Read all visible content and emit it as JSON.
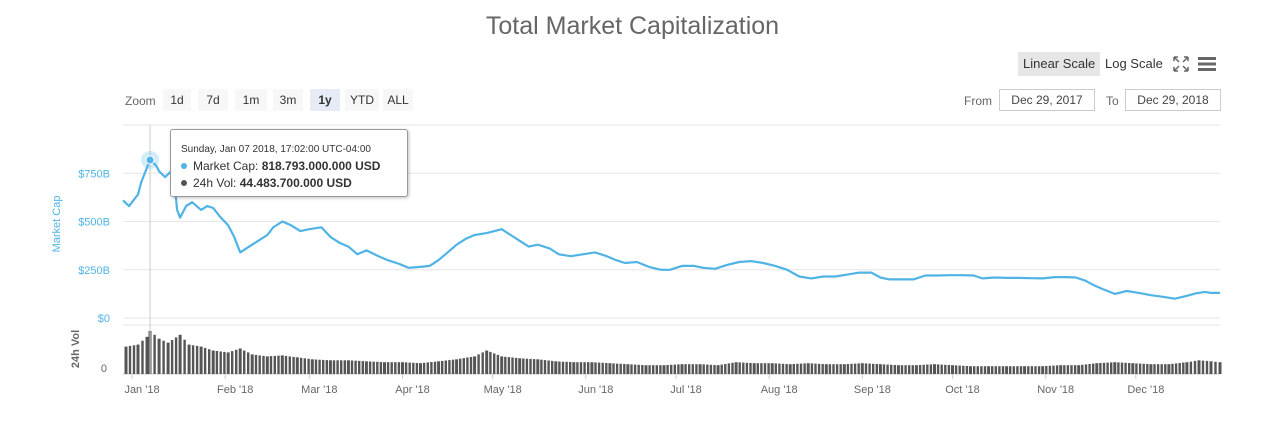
{
  "chart_data": {
    "type": "line",
    "title": "Total Market Capitalization",
    "ylabel": "Market Cap",
    "volume_label": "24h Vol",
    "y_ticks": [
      "$0",
      "$250B",
      "$500B",
      "$750B"
    ],
    "y_tick_values": [
      0,
      250,
      500,
      750
    ],
    "volume_tick": "0",
    "x_ticks": [
      "Jan '18",
      "Feb '18",
      "Mar '18",
      "Apr '18",
      "May '18",
      "Jun '18",
      "Jul '18",
      "Aug '18",
      "Sep '18",
      "Oct '18",
      "Nov '18",
      "Dec '18"
    ],
    "x_tick_dates": [
      "2018-01-01",
      "2018-02-01",
      "2018-03-01",
      "2018-04-01",
      "2018-05-01",
      "2018-06-01",
      "2018-07-01",
      "2018-08-01",
      "2018-09-01",
      "2018-10-01",
      "2018-11-01",
      "2018-12-01"
    ],
    "ylim": [
      0,
      1000
    ],
    "xlim": [
      "2017-12-29",
      "2018-12-29"
    ],
    "grid": true,
    "colors": {
      "line": "#4fb3e6",
      "volume": "#555555",
      "grid": "#e6e6e6"
    },
    "series": [
      {
        "name": "Market Cap",
        "unit": "billion USD",
        "points": [
          [
            "2017-12-29",
            610
          ],
          [
            "2017-12-31",
            580
          ],
          [
            "2018-01-02",
            620
          ],
          [
            "2018-01-03",
            640
          ],
          [
            "2018-01-04",
            700
          ],
          [
            "2018-01-06",
            780
          ],
          [
            "2018-01-07",
            819
          ],
          [
            "2018-01-09",
            790
          ],
          [
            "2018-01-10",
            760
          ],
          [
            "2018-01-12",
            730
          ],
          [
            "2018-01-14",
            760
          ],
          [
            "2018-01-15",
            720
          ],
          [
            "2018-01-16",
            560
          ],
          [
            "2018-01-17",
            520
          ],
          [
            "2018-01-19",
            580
          ],
          [
            "2018-01-21",
            600
          ],
          [
            "2018-01-24",
            560
          ],
          [
            "2018-01-26",
            580
          ],
          [
            "2018-01-28",
            570
          ],
          [
            "2018-01-30",
            530
          ],
          [
            "2018-02-02",
            480
          ],
          [
            "2018-02-04",
            420
          ],
          [
            "2018-02-06",
            340
          ],
          [
            "2018-02-09",
            370
          ],
          [
            "2018-02-12",
            400
          ],
          [
            "2018-02-15",
            430
          ],
          [
            "2018-02-17",
            470
          ],
          [
            "2018-02-20",
            500
          ],
          [
            "2018-02-23",
            480
          ],
          [
            "2018-02-26",
            450
          ],
          [
            "2018-03-01",
            460
          ],
          [
            "2018-03-05",
            470
          ],
          [
            "2018-03-08",
            420
          ],
          [
            "2018-03-11",
            390
          ],
          [
            "2018-03-14",
            370
          ],
          [
            "2018-03-17",
            330
          ],
          [
            "2018-03-20",
            350
          ],
          [
            "2018-03-24",
            320
          ],
          [
            "2018-03-27",
            300
          ],
          [
            "2018-03-31",
            280
          ],
          [
            "2018-04-03",
            260
          ],
          [
            "2018-04-07",
            265
          ],
          [
            "2018-04-10",
            270
          ],
          [
            "2018-04-13",
            300
          ],
          [
            "2018-04-16",
            340
          ],
          [
            "2018-04-19",
            380
          ],
          [
            "2018-04-22",
            410
          ],
          [
            "2018-04-25",
            430
          ],
          [
            "2018-04-29",
            440
          ],
          [
            "2018-05-04",
            460
          ],
          [
            "2018-05-07",
            430
          ],
          [
            "2018-05-10",
            400
          ],
          [
            "2018-05-13",
            370
          ],
          [
            "2018-05-16",
            380
          ],
          [
            "2018-05-20",
            360
          ],
          [
            "2018-05-23",
            330
          ],
          [
            "2018-05-27",
            320
          ],
          [
            "2018-05-31",
            330
          ],
          [
            "2018-06-04",
            340
          ],
          [
            "2018-06-08",
            320
          ],
          [
            "2018-06-11",
            300
          ],
          [
            "2018-06-14",
            285
          ],
          [
            "2018-06-18",
            290
          ],
          [
            "2018-06-22",
            265
          ],
          [
            "2018-06-26",
            250
          ],
          [
            "2018-06-29",
            250
          ],
          [
            "2018-07-03",
            270
          ],
          [
            "2018-07-07",
            270
          ],
          [
            "2018-07-10",
            260
          ],
          [
            "2018-07-14",
            255
          ],
          [
            "2018-07-18",
            275
          ],
          [
            "2018-07-22",
            290
          ],
          [
            "2018-07-26",
            295
          ],
          [
            "2018-07-30",
            285
          ],
          [
            "2018-08-03",
            270
          ],
          [
            "2018-08-07",
            250
          ],
          [
            "2018-08-11",
            215
          ],
          [
            "2018-08-15",
            205
          ],
          [
            "2018-08-19",
            215
          ],
          [
            "2018-08-23",
            215
          ],
          [
            "2018-08-27",
            225
          ],
          [
            "2018-08-31",
            235
          ],
          [
            "2018-09-04",
            235
          ],
          [
            "2018-09-07",
            210
          ],
          [
            "2018-09-10",
            200
          ],
          [
            "2018-09-14",
            200
          ],
          [
            "2018-09-18",
            200
          ],
          [
            "2018-09-22",
            220
          ],
          [
            "2018-09-26",
            220
          ],
          [
            "2018-09-30",
            222
          ],
          [
            "2018-10-04",
            222
          ],
          [
            "2018-10-08",
            220
          ],
          [
            "2018-10-11",
            205
          ],
          [
            "2018-10-15",
            210
          ],
          [
            "2018-10-19",
            208
          ],
          [
            "2018-10-23",
            208
          ],
          [
            "2018-10-27",
            206
          ],
          [
            "2018-10-31",
            205
          ],
          [
            "2018-11-04",
            212
          ],
          [
            "2018-11-08",
            212
          ],
          [
            "2018-11-11",
            210
          ],
          [
            "2018-11-14",
            195
          ],
          [
            "2018-11-17",
            170
          ],
          [
            "2018-11-20",
            150
          ],
          [
            "2018-11-24",
            125
          ],
          [
            "2018-11-28",
            140
          ],
          [
            "2018-12-02",
            130
          ],
          [
            "2018-12-06",
            118
          ],
          [
            "2018-12-10",
            110
          ],
          [
            "2018-12-14",
            100
          ],
          [
            "2018-12-18",
            115
          ],
          [
            "2018-12-21",
            128
          ],
          [
            "2018-12-24",
            135
          ],
          [
            "2018-12-26",
            130
          ],
          [
            "2018-12-29",
            130
          ]
        ]
      },
      {
        "name": "24h Vol",
        "unit": "billion USD",
        "points": [
          [
            "2017-12-30",
            28
          ],
          [
            "2018-01-03",
            30
          ],
          [
            "2018-01-06",
            38
          ],
          [
            "2018-01-07",
            44
          ],
          [
            "2018-01-10",
            36
          ],
          [
            "2018-01-13",
            32
          ],
          [
            "2018-01-17",
            40
          ],
          [
            "2018-01-20",
            30
          ],
          [
            "2018-01-24",
            28
          ],
          [
            "2018-01-28",
            24
          ],
          [
            "2018-02-02",
            22
          ],
          [
            "2018-02-06",
            26
          ],
          [
            "2018-02-10",
            20
          ],
          [
            "2018-02-15",
            18
          ],
          [
            "2018-02-20",
            19
          ],
          [
            "2018-02-25",
            17
          ],
          [
            "2018-03-02",
            15
          ],
          [
            "2018-03-08",
            14
          ],
          [
            "2018-03-14",
            14
          ],
          [
            "2018-03-20",
            13
          ],
          [
            "2018-03-26",
            12
          ],
          [
            "2018-04-01",
            12
          ],
          [
            "2018-04-07",
            11
          ],
          [
            "2018-04-13",
            13
          ],
          [
            "2018-04-19",
            15
          ],
          [
            "2018-04-25",
            18
          ],
          [
            "2018-04-29",
            24
          ],
          [
            "2018-05-04",
            18
          ],
          [
            "2018-05-10",
            16
          ],
          [
            "2018-05-16",
            15
          ],
          [
            "2018-05-22",
            13
          ],
          [
            "2018-05-28",
            12
          ],
          [
            "2018-06-03",
            12
          ],
          [
            "2018-06-09",
            11
          ],
          [
            "2018-06-15",
            10
          ],
          [
            "2018-06-21",
            9
          ],
          [
            "2018-06-27",
            9
          ],
          [
            "2018-07-03",
            10
          ],
          [
            "2018-07-09",
            10
          ],
          [
            "2018-07-15",
            9
          ],
          [
            "2018-07-21",
            12
          ],
          [
            "2018-07-27",
            11
          ],
          [
            "2018-08-02",
            11
          ],
          [
            "2018-08-08",
            10
          ],
          [
            "2018-08-14",
            11
          ],
          [
            "2018-08-20",
            10
          ],
          [
            "2018-08-26",
            10
          ],
          [
            "2018-09-01",
            11
          ],
          [
            "2018-09-07",
            10
          ],
          [
            "2018-09-13",
            9
          ],
          [
            "2018-09-19",
            9
          ],
          [
            "2018-09-25",
            10
          ],
          [
            "2018-10-01",
            9
          ],
          [
            "2018-10-07",
            8
          ],
          [
            "2018-10-13",
            8
          ],
          [
            "2018-10-19",
            8
          ],
          [
            "2018-10-25",
            8
          ],
          [
            "2018-10-31",
            8
          ],
          [
            "2018-11-06",
            9
          ],
          [
            "2018-11-12",
            9
          ],
          [
            "2018-11-18",
            11
          ],
          [
            "2018-11-24",
            12
          ],
          [
            "2018-11-30",
            11
          ],
          [
            "2018-12-06",
            10
          ],
          [
            "2018-12-12",
            10
          ],
          [
            "2018-12-18",
            12
          ],
          [
            "2018-12-22",
            14
          ],
          [
            "2018-12-26",
            13
          ],
          [
            "2018-12-29",
            12
          ]
        ]
      }
    ]
  },
  "toolbar": {
    "linear_scale": "Linear Scale",
    "log_scale": "Log Scale",
    "fullscreen_icon": "fullscreen-icon",
    "menu_icon": "hamburger-menu-icon"
  },
  "zoom": {
    "label": "Zoom",
    "buttons": [
      "1d",
      "7d",
      "1m",
      "3m",
      "1y",
      "YTD",
      "ALL"
    ],
    "active": "1y"
  },
  "range": {
    "from_label": "From",
    "from_value": "Dec 29, 2017",
    "to_label": "To",
    "to_value": "Dec 29, 2018"
  },
  "tooltip": {
    "date": "Sunday, Jan 07 2018, 17:02:00 UTC-04:00",
    "market_cap_label": "Market Cap:",
    "market_cap_value": "818.793.000.000 USD",
    "volume_label": "24h Vol:",
    "volume_value": "44.483.700.000 USD",
    "hover_date": "2018-01-07",
    "market_cap_billion": 818.793,
    "volume_billion": 44.4837
  }
}
